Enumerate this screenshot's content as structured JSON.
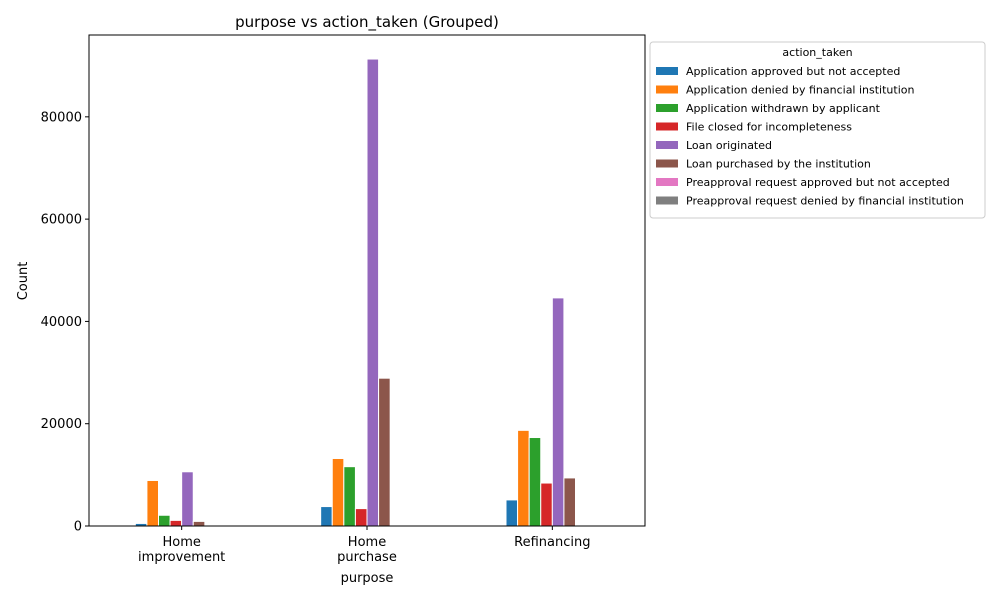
{
  "chart_data": {
    "type": "bar",
    "title": "purpose vs action_taken (Grouped)",
    "xlabel": "purpose",
    "ylabel": "Count",
    "ylim": [
      0,
      96000
    ],
    "yticks": [
      0,
      20000,
      40000,
      60000,
      80000
    ],
    "grid": false,
    "legend_title": "action_taken",
    "legend_position": "outside-right-top",
    "categories": [
      [
        "Home",
        "improvement"
      ],
      [
        "Home",
        "purchase"
      ],
      [
        "Refinancing"
      ]
    ],
    "series": [
      {
        "name": "Application approved but not accepted",
        "color": "#1f77b4",
        "values": [
          500,
          3800,
          5100
        ]
      },
      {
        "name": "Application denied by financial institution",
        "color": "#ff7f0e",
        "values": [
          8900,
          13200,
          18700
        ]
      },
      {
        "name": "Application withdrawn by applicant",
        "color": "#2ca02c",
        "values": [
          2100,
          11600,
          17300
        ]
      },
      {
        "name": "File closed for incompleteness",
        "color": "#d62728",
        "values": [
          1100,
          3400,
          8400
        ]
      },
      {
        "name": "Loan originated",
        "color": "#9467bd",
        "values": [
          10600,
          91300,
          44600
        ]
      },
      {
        "name": "Loan purchased by the institution",
        "color": "#8c564b",
        "values": [
          900,
          28900,
          9400
        ]
      },
      {
        "name": "Preapproval request approved but not accepted",
        "color": "#e377c2",
        "values": [
          0,
          0,
          0
        ]
      },
      {
        "name": "Preapproval request denied by financial institution",
        "color": "#7f7f7f",
        "values": [
          0,
          0,
          0
        ]
      }
    ]
  }
}
